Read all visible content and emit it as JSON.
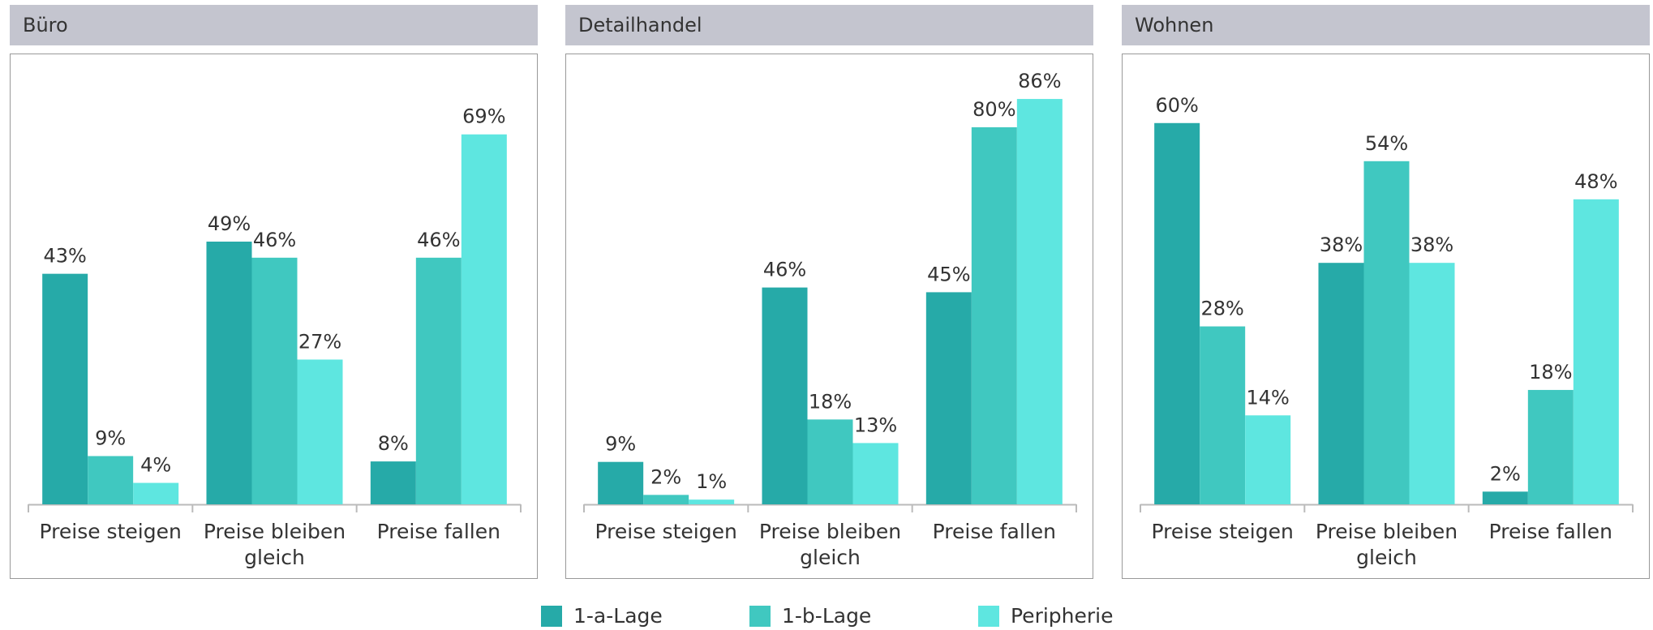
{
  "legend": [
    {
      "name": "1-a-Lage",
      "color": "#26aaa8"
    },
    {
      "name": "1-b-Lage",
      "color": "#40c8c0"
    },
    {
      "name": "Peripherie",
      "color": "#5ee6e0"
    }
  ],
  "chart_data": [
    {
      "type": "bar",
      "title": "Büro",
      "categories": [
        "Preise steigen",
        "Preise bleiben gleich",
        "Preise fallen"
      ],
      "ylim": [
        0,
        80
      ],
      "series": [
        {
          "values": [
            43,
            49,
            8
          ],
          "value_labels": [
            "43%",
            "49%",
            "8%"
          ]
        },
        {
          "values": [
            9,
            46,
            46
          ],
          "value_labels": [
            "9%",
            "46%",
            "46%"
          ]
        },
        {
          "values": [
            4,
            27,
            69
          ],
          "value_labels": [
            "4%",
            "27%",
            "69%"
          ]
        }
      ]
    },
    {
      "type": "bar",
      "title": "Detailhandel",
      "categories": [
        "Preise steigen",
        "Preise bleiben gleich",
        "Preise fallen"
      ],
      "ylim": [
        0,
        91
      ],
      "series": [
        {
          "values": [
            9,
            46,
            45
          ],
          "value_labels": [
            "9%",
            "46%",
            "45%"
          ]
        },
        {
          "values": [
            2,
            18,
            80
          ],
          "value_labels": [
            "2%",
            "18%",
            "80%"
          ]
        },
        {
          "values": [
            1,
            13,
            86
          ],
          "value_labels": [
            "1%",
            "13%",
            "86%"
          ]
        }
      ]
    },
    {
      "type": "bar",
      "title": "Wohnen",
      "categories": [
        "Preise steigen",
        "Preise bleiben gleich",
        "Preise fallen"
      ],
      "ylim": [
        0,
        67.5
      ],
      "series": [
        {
          "values": [
            60,
            38,
            2
          ],
          "value_labels": [
            "60%",
            "38%",
            "2%"
          ]
        },
        {
          "values": [
            28,
            54,
            18
          ],
          "value_labels": [
            "28%",
            "54%",
            "18%"
          ]
        },
        {
          "values": [
            14,
            38,
            48
          ],
          "value_labels": [
            "14%",
            "38%",
            "48%"
          ]
        }
      ]
    }
  ]
}
